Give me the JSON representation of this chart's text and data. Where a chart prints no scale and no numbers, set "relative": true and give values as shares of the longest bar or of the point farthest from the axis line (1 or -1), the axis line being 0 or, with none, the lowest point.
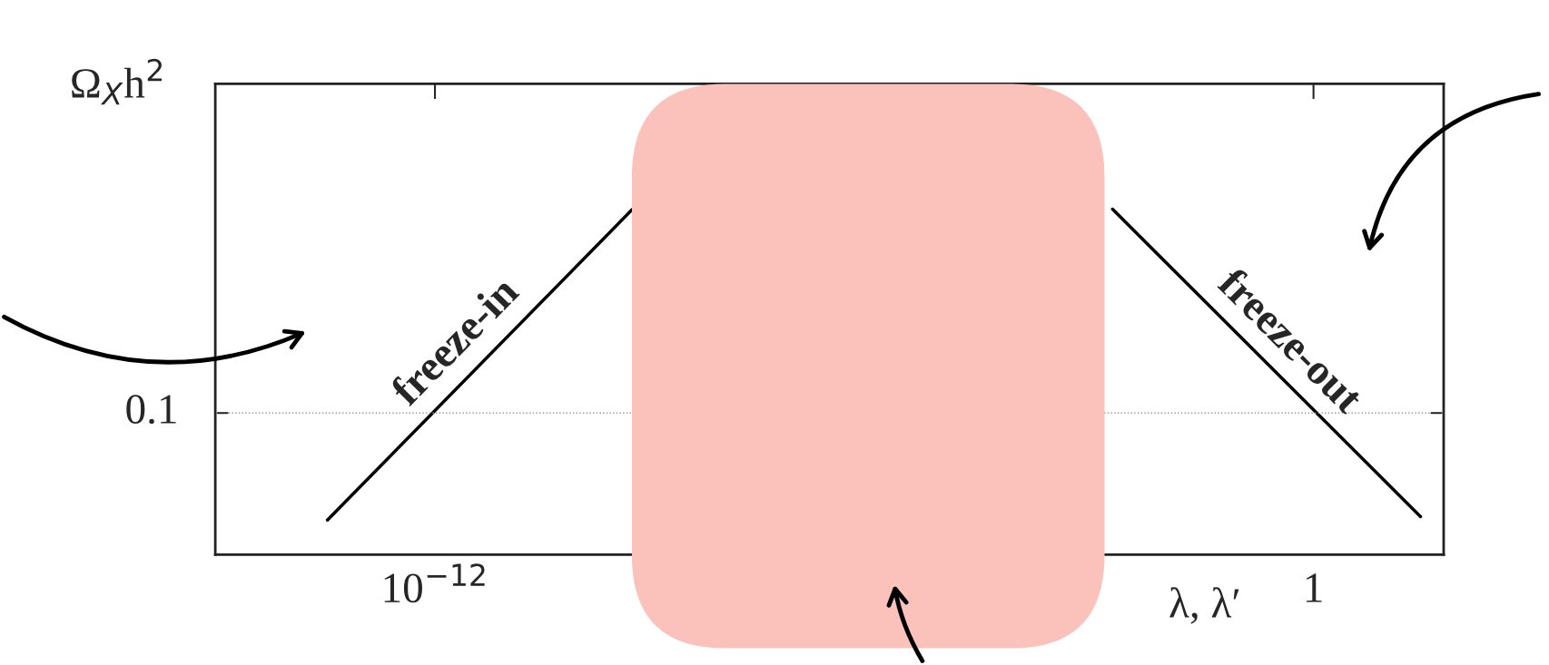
{
  "chart_data": {
    "type": "line",
    "relative": true,
    "log": "x",
    "xlabel": "λ, λ′",
    "ylabel": "Ω$_{X}$h$^{2}$",
    "xlim": [
      1e-15,
      60
    ],
    "xticks": [
      {
        "value": 1e-12,
        "label": "10$^{−12}$"
      },
      1
    ],
    "series": [
      {
        "color": "#000000",
        "x": [
          3.4e-14,
          5e-10
        ],
        "values": [
          0.1,
          1
        ]
      },
      {
        "color": "#000000",
        "x": [
          0.0018,
          29
        ],
        "values": [
          1,
          0.11
        ]
      }
    ],
    "bands": [
      {
        "axis": "x",
        "from": 4.9e-10,
        "to": 0.0014,
        "color": "#fbc1bb"
      }
    ],
    "ref_lines": [
      {
        "axis": "y",
        "value": 0.41,
        "color": "#999999",
        "line_style": "dotted"
      }
    ],
    "annotations": [
      {
        "text": "freeze-in",
        "x": 4e-12,
        "y": 0.55
      },
      {
        "text": "freeze-out",
        "x": 0.23,
        "y": 0.55
      },
      "0.1"
    ],
    "grid": false,
    "legend": false,
    "line_style": "solid",
    "marker": "none"
  }
}
